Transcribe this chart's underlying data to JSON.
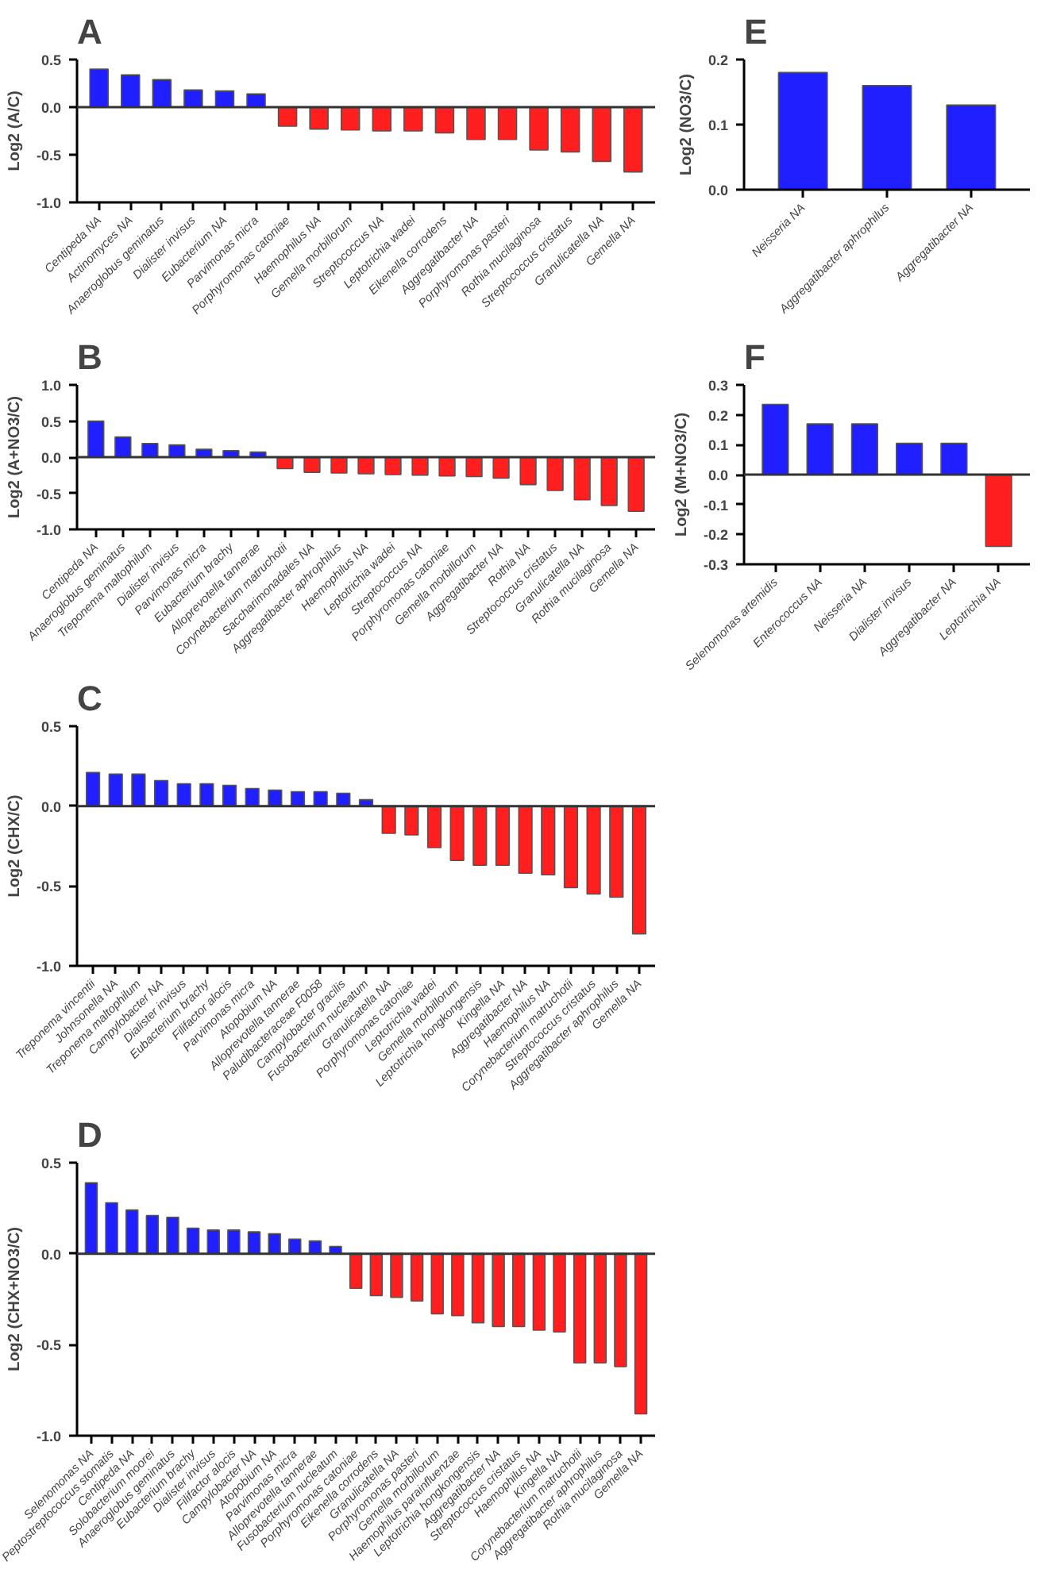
{
  "chart_data": [
    {
      "type": "bar",
      "title": "A",
      "ylabel": "Log2 (A/C)",
      "grid": false,
      "ylim": [
        -1,
        0.5
      ],
      "yticks": [
        {
          "value": -1,
          "label": "-1.0"
        },
        -0.5,
        {
          "value": 0,
          "label": "0.0"
        },
        0.5
      ],
      "categories": [
        "Centipeda NA",
        "Actinomyces NA",
        "Anaeroglobus geminatus",
        "Dialister invisus",
        "Eubacterium NA",
        "Parvimonas micra",
        "Porphyromonas catoniae",
        "Haemophilus NA",
        "Gemella morbillorum",
        "Streptococcus NA",
        "Leptotrichia wadei",
        "Eikenella corrodens",
        "Aggregatibacter NA",
        "Porphyromonas pasteri",
        "Rothia mucilaginosa",
        "Streptococcus cristatus",
        "Granulicatella NA",
        "Gemella NA"
      ],
      "values": [
        0.4,
        0.34,
        0.29,
        0.18,
        0.17,
        0.14,
        -0.2,
        -0.23,
        -0.24,
        -0.25,
        -0.25,
        -0.27,
        -0.34,
        -0.34,
        -0.45,
        -0.47,
        -0.57,
        -0.68
      ],
      "colors": [
        "#1f1fff",
        "#1f1fff",
        "#1f1fff",
        "#1f1fff",
        "#1f1fff",
        "#1f1fff",
        "#ff1f1f",
        "#ff1f1f",
        "#ff1f1f",
        "#ff1f1f",
        "#ff1f1f",
        "#ff1f1f",
        "#ff1f1f",
        "#ff1f1f",
        "#ff1f1f",
        "#ff1f1f",
        "#ff1f1f",
        "#ff1f1f"
      ],
      "ref_lines": [
        {
          "axis": "y",
          "value": 0
        }
      ]
    },
    {
      "type": "bar",
      "title": "B",
      "ylabel": "Log2 (A+NO3/C)",
      "grid": false,
      "ylim": [
        -1,
        1
      ],
      "yticks": [
        {
          "value": -1,
          "label": "-1.0"
        },
        -0.5,
        {
          "value": 0,
          "label": "0.0"
        },
        0.5,
        {
          "value": 1,
          "label": "1.0"
        }
      ],
      "categories": [
        "Centipeda NA",
        "Anaeroglobus geminatus",
        "Treponema maltophilum",
        "Dialister invisus",
        "Parvimonas micra",
        "Eubacterium brachy",
        "Alloprevotella tannerae",
        "Corynebacterium matruchotii",
        "Saccharimonadales NA",
        "Aggregatibacter aphrophilus",
        "Haemophilus NA",
        "Leptotrichia wadei",
        "Streptococcus NA",
        "Porphyromonas catoniae",
        "Gemella morbillorum",
        "Aggregatibacter NA",
        "Rothia NA",
        "Streptococcus cristatus",
        "Granulicatella NA",
        "Rothia mucilaginosa",
        "Gemella NA"
      ],
      "values": [
        0.5,
        0.28,
        0.19,
        0.17,
        0.11,
        0.09,
        0.07,
        -0.16,
        -0.21,
        -0.22,
        -0.23,
        -0.24,
        -0.25,
        -0.26,
        -0.27,
        -0.29,
        -0.38,
        -0.46,
        -0.59,
        -0.67,
        -0.75
      ],
      "colors": [
        "#1f1fff",
        "#1f1fff",
        "#1f1fff",
        "#1f1fff",
        "#1f1fff",
        "#1f1fff",
        "#1f1fff",
        "#ff1f1f",
        "#ff1f1f",
        "#ff1f1f",
        "#ff1f1f",
        "#ff1f1f",
        "#ff1f1f",
        "#ff1f1f",
        "#ff1f1f",
        "#ff1f1f",
        "#ff1f1f",
        "#ff1f1f",
        "#ff1f1f",
        "#ff1f1f",
        "#ff1f1f"
      ],
      "ref_lines": [
        {
          "axis": "y",
          "value": 0
        }
      ]
    },
    {
      "type": "bar",
      "title": "C",
      "ylabel": "Log2 (CHX/C)",
      "grid": false,
      "ylim": [
        -1,
        0.5
      ],
      "yticks": [
        {
          "value": -1,
          "label": "-1.0"
        },
        -0.5,
        {
          "value": 0,
          "label": "0.0"
        },
        0.5
      ],
      "categories": [
        "Treponema vincentii",
        "Johnsonella NA",
        "Treponema maltophilum",
        "Campylobacter NA",
        "Dialister invisus",
        "Eubacterium brachy",
        "Filifactor alocis",
        "Parvimonas micra",
        "Atopobium NA",
        "Alloprevotella tannerae",
        "Paludibacteraceae F0058",
        "Campylobacter gracilis",
        "Fusobacterium nucleatum",
        "Granulicatella NA",
        "Porphyromonas catoniae",
        "Leptotrichia wadei",
        "Gemella morbillorum",
        "Leptotrichia hongkongensis",
        "Kingella NA",
        "Aggregatibacter NA",
        "Haemophilus NA",
        "Corynebacterium matruchotii",
        "Streptococcus cristatus",
        "Aggregatibacter aphrophilus",
        "Gemella NA"
      ],
      "values": [
        0.21,
        0.2,
        0.2,
        0.16,
        0.14,
        0.14,
        0.13,
        0.11,
        0.1,
        0.09,
        0.09,
        0.08,
        0.04,
        -0.17,
        -0.18,
        -0.26,
        -0.34,
        -0.37,
        -0.37,
        -0.42,
        -0.43,
        -0.51,
        -0.55,
        -0.57,
        -0.8
      ],
      "colors": [
        "#1f1fff",
        "#1f1fff",
        "#1f1fff",
        "#1f1fff",
        "#1f1fff",
        "#1f1fff",
        "#1f1fff",
        "#1f1fff",
        "#1f1fff",
        "#1f1fff",
        "#1f1fff",
        "#1f1fff",
        "#1f1fff",
        "#ff1f1f",
        "#ff1f1f",
        "#ff1f1f",
        "#ff1f1f",
        "#ff1f1f",
        "#ff1f1f",
        "#ff1f1f",
        "#ff1f1f",
        "#ff1f1f",
        "#ff1f1f",
        "#ff1f1f",
        "#ff1f1f"
      ],
      "ref_lines": [
        {
          "axis": "y",
          "value": 0
        }
      ]
    },
    {
      "type": "bar",
      "title": "D",
      "ylabel": "Log2 (CHX+NO3/C)",
      "grid": false,
      "ylim": [
        -1,
        0.5
      ],
      "yticks": [
        {
          "value": -1,
          "label": "-1.0"
        },
        -0.5,
        {
          "value": 0,
          "label": "0.0"
        },
        0.5
      ],
      "categories": [
        "Selenomonas NA",
        "Peptostreptococcus stomatis",
        "Centipeda NA",
        "Solobacterium moorei",
        "Anaeroglobus geminatus",
        "Eubacterium brachy",
        "Dialister invisus",
        "Filifactor alocis",
        "Campylobacter NA",
        "Atopobium NA",
        "Parvimonas micra",
        "Alloprevotella tannerae",
        "Fusobacterium nucleatum",
        "Porphyromonas catoniae",
        "Eikenella corrodens",
        "Granulicatella NA",
        "Porphyromonas pasteri",
        "Gemella morbillorum",
        "Haemophilus parainfluenzae",
        "Leptotrichia hongkongensis",
        "Aggregatibacter NA",
        "Streptococcus cristatus",
        "Haemophilus NA",
        "Kingella NA",
        "Corynebacterium matruchotii",
        "Aggregatibacter aphrophilus",
        "Rothia mucilaginosa",
        "Gemella NA"
      ],
      "values": [
        0.39,
        0.28,
        0.24,
        0.21,
        0.2,
        0.14,
        0.13,
        0.13,
        0.12,
        0.11,
        0.08,
        0.07,
        0.04,
        -0.19,
        -0.23,
        -0.24,
        -0.26,
        -0.33,
        -0.34,
        -0.38,
        -0.4,
        -0.4,
        -0.42,
        -0.43,
        -0.6,
        -0.6,
        -0.62,
        -0.88
      ],
      "colors": [
        "#1f1fff",
        "#1f1fff",
        "#1f1fff",
        "#1f1fff",
        "#1f1fff",
        "#1f1fff",
        "#1f1fff",
        "#1f1fff",
        "#1f1fff",
        "#1f1fff",
        "#1f1fff",
        "#1f1fff",
        "#1f1fff",
        "#ff1f1f",
        "#ff1f1f",
        "#ff1f1f",
        "#ff1f1f",
        "#ff1f1f",
        "#ff1f1f",
        "#ff1f1f",
        "#ff1f1f",
        "#ff1f1f",
        "#ff1f1f",
        "#ff1f1f",
        "#ff1f1f",
        "#ff1f1f",
        "#ff1f1f",
        "#ff1f1f"
      ],
      "ref_lines": [
        {
          "axis": "y",
          "value": 0
        }
      ]
    },
    {
      "type": "bar",
      "title": "E",
      "ylabel": "Log2 (NO3/C)",
      "grid": false,
      "ylim": [
        0,
        0.2
      ],
      "yticks": [
        {
          "value": 0,
          "label": "0.0"
        },
        0.1,
        0.2
      ],
      "categories": [
        "Neisseria NA",
        "Aggregatibacter aphrophilus",
        "Aggregatibacter NA"
      ],
      "values": [
        0.18,
        0.16,
        0.13
      ],
      "colors": [
        "#1f1fff",
        "#1f1fff",
        "#1f1fff"
      ]
    },
    {
      "type": "bar",
      "title": "F",
      "ylabel": "Log2 (M+NO3/C)",
      "grid": false,
      "ylim": [
        -0.3,
        0.3
      ],
      "yticks": [
        -0.3,
        -0.2,
        -0.1,
        {
          "value": 0,
          "label": "0.0"
        },
        0.1,
        0.2,
        0.3
      ],
      "categories": [
        "Selenomonas artemidis",
        "Enterococcus NA",
        "Neisseria NA",
        "Dialister invisus",
        "Aggregatibacter NA",
        "Leptotrichia NA"
      ],
      "values": [
        0.235,
        0.17,
        0.17,
        0.105,
        0.105,
        -0.24
      ],
      "colors": [
        "#1f1fff",
        "#1f1fff",
        "#1f1fff",
        "#1f1fff",
        "#1f1fff",
        "#ff1f1f"
      ],
      "ref_lines": [
        {
          "axis": "y",
          "value": 0
        }
      ]
    }
  ]
}
